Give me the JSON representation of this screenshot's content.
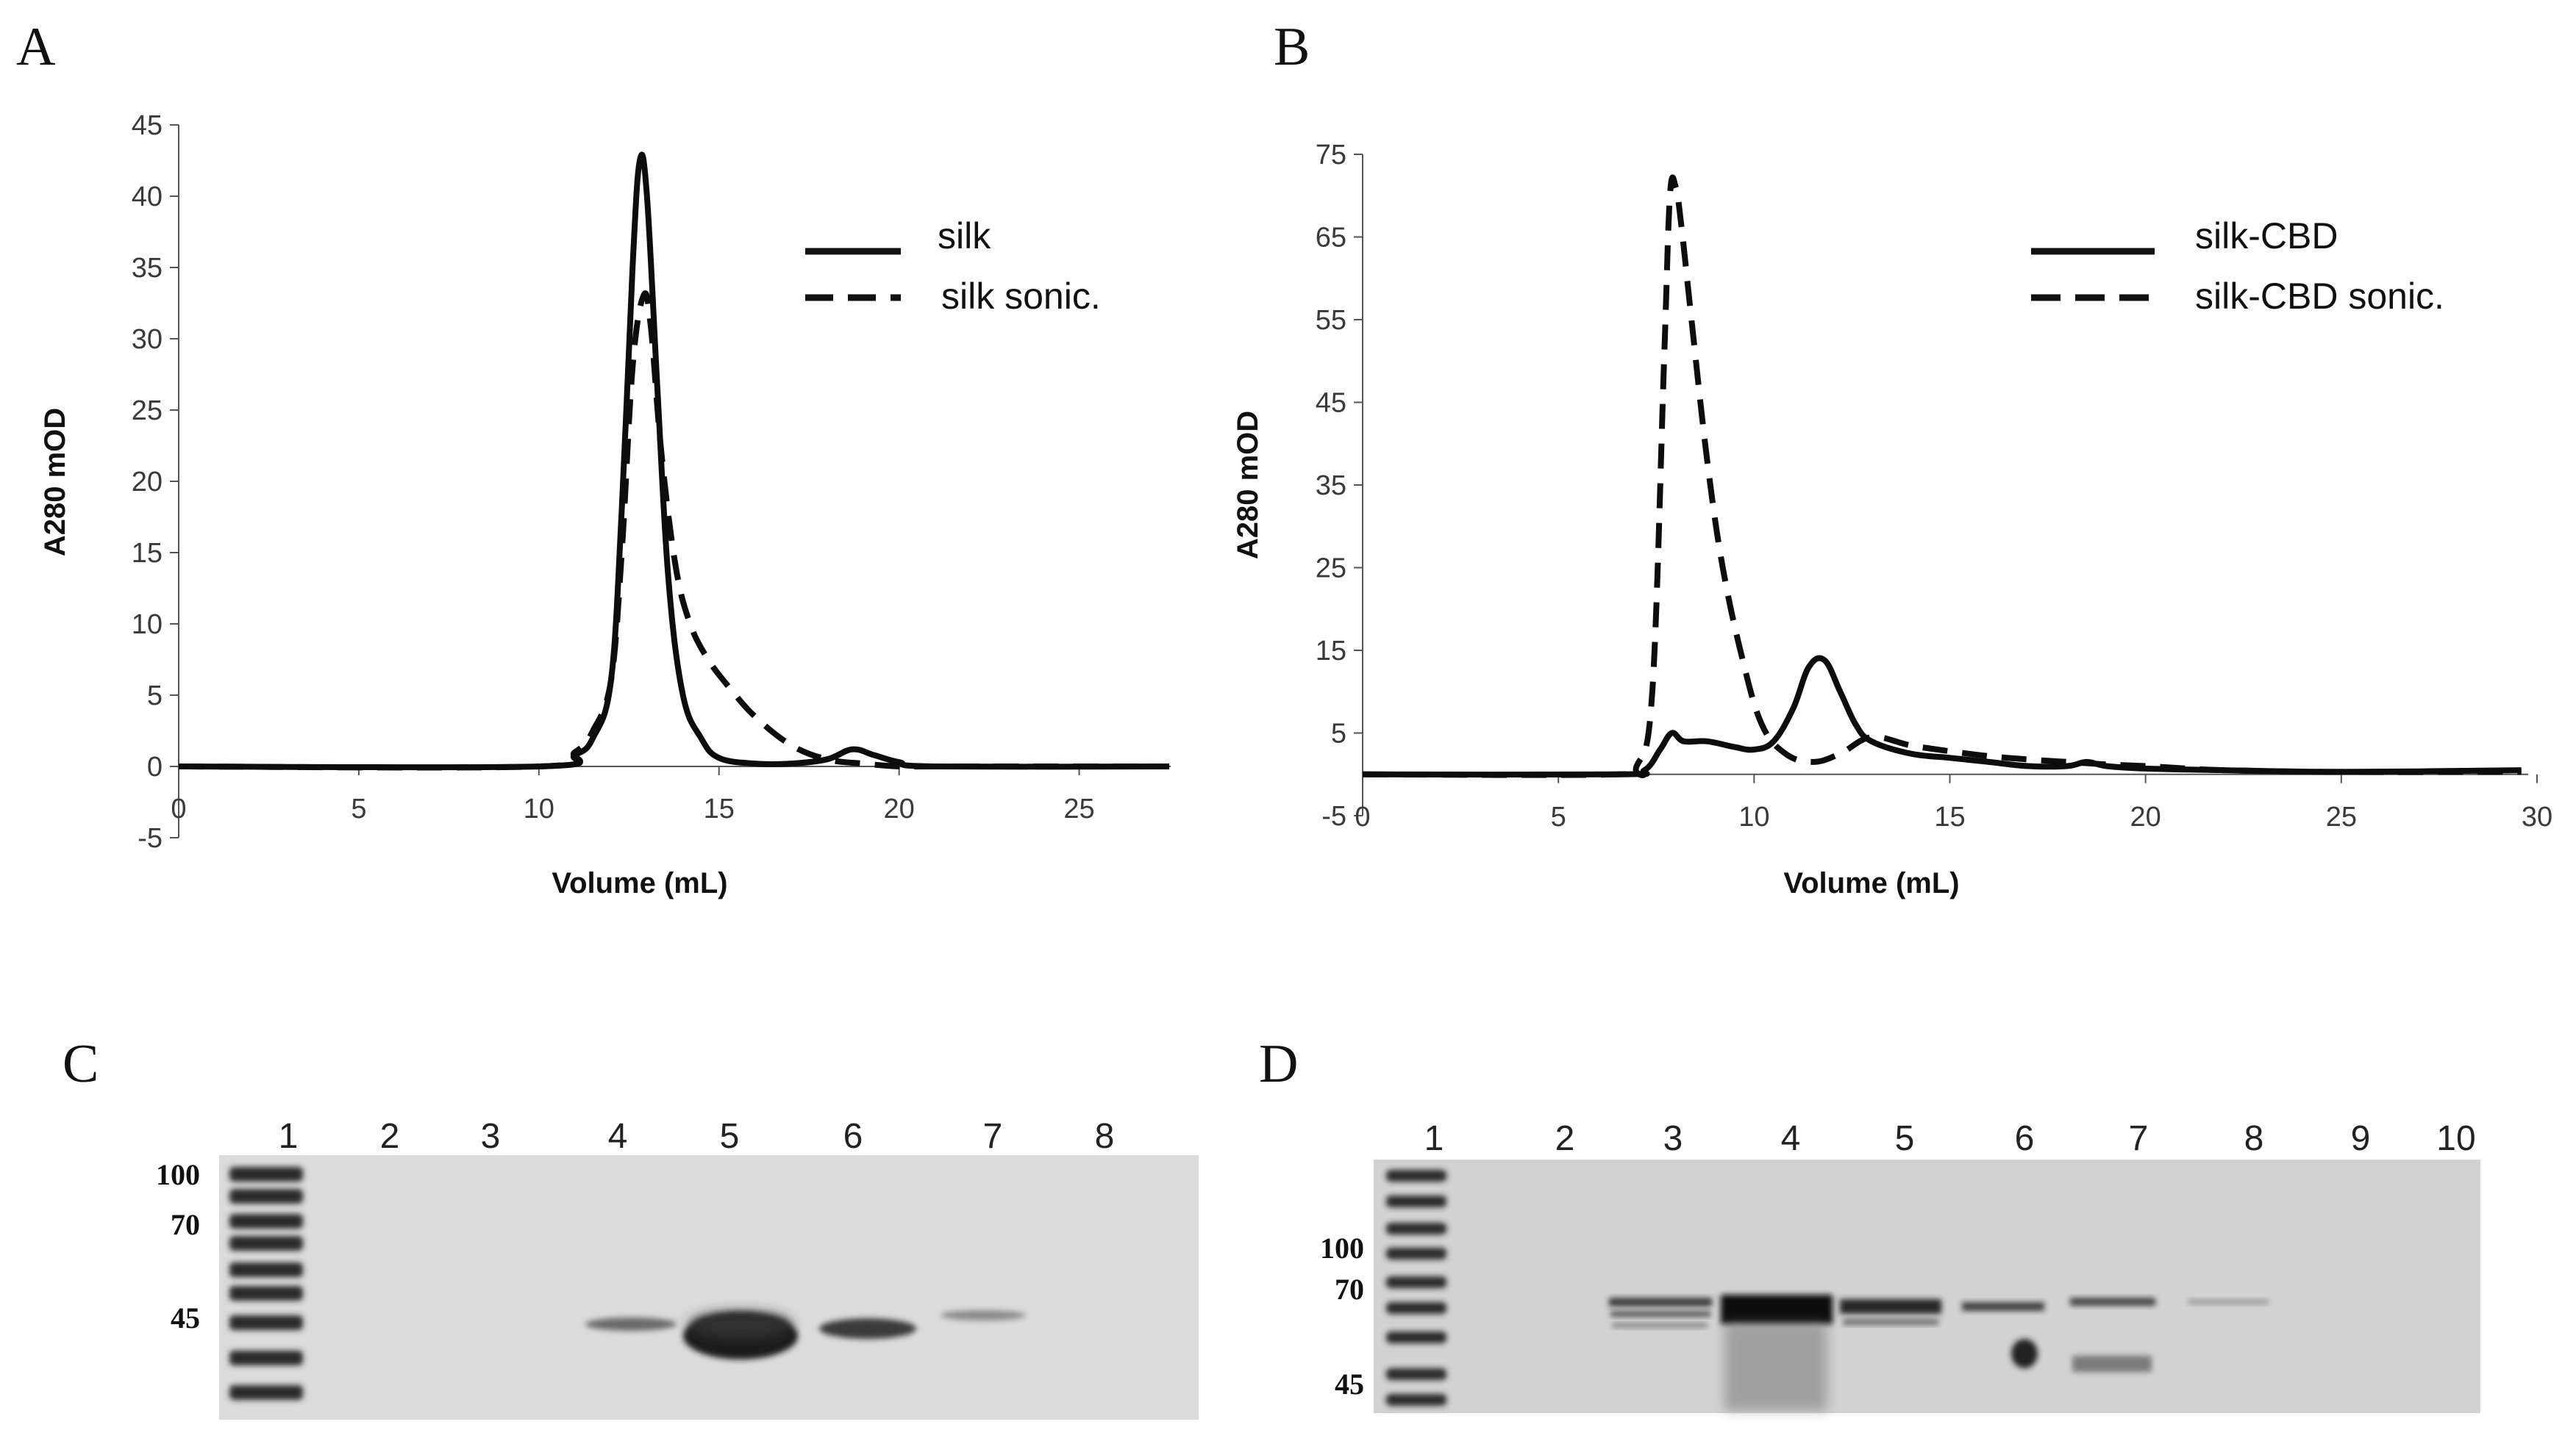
{
  "panels": {
    "a": "A",
    "b": "B",
    "c": "C",
    "d": "D"
  },
  "chart_data": [
    {
      "type": "line",
      "panel": "A",
      "xlabel": "Volume (mL)",
      "ylabel": "A280 mOD",
      "xlim": [
        0,
        27.5
      ],
      "ylim": [
        -5,
        45
      ],
      "xticks": [
        0,
        5,
        10,
        15,
        20,
        25
      ],
      "yticks": [
        -5,
        0,
        5,
        10,
        15,
        20,
        25,
        30,
        35,
        40,
        45
      ],
      "legend_position": "top-right",
      "series": [
        {
          "name": "silk",
          "style": "solid",
          "x": [
            0,
            10,
            11,
            11.5,
            12,
            12.3,
            12.6,
            12.8,
            13.0,
            13.3,
            13.6,
            14.0,
            14.5,
            15.0,
            16,
            17,
            18,
            18.7,
            19.3,
            20,
            21,
            27.5
          ],
          "y": [
            0,
            0,
            0.8,
            2,
            6,
            18,
            35,
            42.5,
            40,
            26,
            13,
            5,
            2,
            0.6,
            0.2,
            0.2,
            0.5,
            1.2,
            0.8,
            0.3,
            0,
            0
          ]
        },
        {
          "name": "silk sonic.",
          "style": "dashed",
          "x": [
            0,
            10,
            11,
            11.5,
            12,
            12.3,
            12.6,
            12.9,
            13.1,
            13.4,
            13.8,
            14.2,
            14.7,
            15.3,
            16,
            17,
            18,
            19,
            20,
            21,
            27.5
          ],
          "y": [
            0,
            0,
            1,
            2.5,
            6,
            15,
            28,
            33,
            31,
            22,
            14,
            10,
            7.5,
            5.5,
            3.5,
            1.5,
            0.5,
            0.2,
            0,
            0,
            0
          ]
        }
      ]
    },
    {
      "type": "line",
      "panel": "B",
      "xlabel": "Volume (mL)",
      "ylabel": "A280 mOD",
      "xlim": [
        0,
        30
      ],
      "ylim": [
        -5,
        75
      ],
      "xticks": [
        0,
        5,
        10,
        15,
        20,
        25,
        30
      ],
      "yticks": [
        -5,
        5,
        15,
        25,
        35,
        45,
        55,
        65,
        75
      ],
      "legend_position": "top-right",
      "series": [
        {
          "name": "silk-CBD",
          "style": "solid",
          "x": [
            0,
            6.5,
            7.2,
            7.6,
            7.9,
            8.2,
            8.8,
            9.5,
            10.0,
            10.5,
            11.0,
            11.4,
            11.8,
            12.2,
            12.6,
            13,
            14,
            15,
            16,
            17,
            18,
            18.5,
            19,
            20,
            22,
            25,
            29.6
          ],
          "y": [
            0,
            0,
            0.5,
            3,
            5,
            4,
            4,
            3.3,
            3,
            4,
            8,
            13,
            13.8,
            10,
            6,
            4,
            2.5,
            2,
            1.5,
            1,
            1,
            1.5,
            1,
            0.7,
            0.5,
            0.3,
            0.5
          ]
        },
        {
          "name": "silk-CBD sonic.",
          "style": "dashed",
          "x": [
            0,
            6.5,
            7.0,
            7.4,
            7.7,
            7.85,
            8.0,
            8.15,
            8.4,
            8.8,
            9.2,
            9.7,
            10.2,
            10.8,
            11.5,
            12.2,
            13,
            14,
            15,
            16,
            17,
            18,
            19,
            20,
            22,
            25,
            29.6
          ],
          "y": [
            0,
            0,
            1,
            10,
            50,
            70,
            71,
            66,
            55,
            38,
            25,
            14,
            6,
            2.5,
            1.5,
            2.5,
            4.5,
            3.5,
            2.8,
            2.2,
            1.8,
            1.5,
            1.2,
            1,
            0.5,
            0.3,
            0.3
          ]
        }
      ]
    }
  ],
  "gel_c": {
    "lanes": [
      "1",
      "2",
      "3",
      "4",
      "5",
      "6",
      "7",
      "8"
    ],
    "markers": [
      "100",
      "70",
      "45"
    ]
  },
  "gel_d": {
    "lanes": [
      "1",
      "2",
      "3",
      "4",
      "5",
      "6",
      "7",
      "8",
      "9",
      "10"
    ],
    "markers": [
      "100",
      "70",
      "45"
    ]
  }
}
